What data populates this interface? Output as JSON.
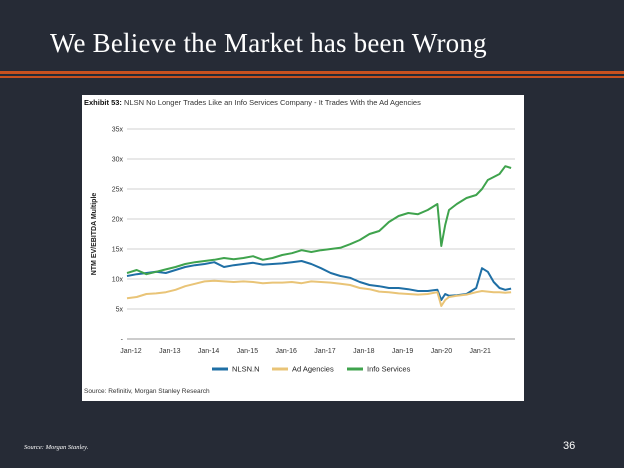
{
  "slide": {
    "title": "We Believe the Market has been Wrong",
    "footer_source": "Source: Morgan Stanley.",
    "page_number": "36",
    "accent_color": "#c9511f",
    "background_color": "#262b36"
  },
  "exhibit": {
    "label": "Exhibit 53:",
    "caption": "NLSN No Longer Trades Like an Info Services Company - It Trades With the Ad Agencies",
    "source": "Source: Refinitiv, Morgan Stanley Research"
  },
  "chart_data": {
    "type": "line",
    "ylabel": "NTM EV/EBITDA Multiple",
    "xlabel": "",
    "ylim": [
      0,
      35
    ],
    "xlim": [
      2012.0,
      2022.0
    ],
    "y_ticks": [
      0,
      5,
      10,
      15,
      20,
      25,
      30,
      35
    ],
    "y_tick_labels": [
      "-",
      "5x",
      "10x",
      "15x",
      "20x",
      "25x",
      "30x",
      "35x"
    ],
    "x_ticks": [
      2012,
      2013,
      2014,
      2015,
      2016,
      2017,
      2018,
      2019,
      2020,
      2021
    ],
    "x_tick_labels": [
      "Jan-12",
      "Jan-13",
      "Jan-14",
      "Jan-15",
      "Jan-16",
      "Jan-17",
      "Jan-18",
      "Jan-19",
      "Jan-20",
      "Jan-21"
    ],
    "grid": true,
    "legend_position": "bottom",
    "series": [
      {
        "name": "NLSN.N",
        "color": "#1f6fa5",
        "x": [
          2012.0,
          2012.25,
          2012.5,
          2012.75,
          2013.0,
          2013.25,
          2013.5,
          2013.75,
          2014.0,
          2014.25,
          2014.5,
          2014.75,
          2015.0,
          2015.25,
          2015.5,
          2015.75,
          2016.0,
          2016.25,
          2016.5,
          2016.75,
          2017.0,
          2017.25,
          2017.5,
          2017.75,
          2018.0,
          2018.25,
          2018.5,
          2018.75,
          2019.0,
          2019.25,
          2019.5,
          2019.75,
          2020.0,
          2020.1,
          2020.2,
          2020.3,
          2020.5,
          2020.75,
          2021.0,
          2021.15,
          2021.3,
          2021.45,
          2021.6,
          2021.75,
          2021.9
        ],
        "y": [
          10.5,
          10.8,
          11.0,
          11.2,
          11.0,
          11.5,
          12.0,
          12.3,
          12.5,
          12.8,
          12.0,
          12.3,
          12.5,
          12.7,
          12.4,
          12.5,
          12.6,
          12.8,
          13.0,
          12.5,
          11.8,
          11.0,
          10.5,
          10.2,
          9.5,
          9.0,
          8.8,
          8.5,
          8.5,
          8.3,
          8.0,
          8.0,
          8.2,
          6.5,
          7.5,
          7.2,
          7.3,
          7.5,
          8.5,
          11.8,
          11.2,
          9.5,
          8.5,
          8.2,
          8.4
        ]
      },
      {
        "name": "Ad Agencies",
        "color": "#e9c477",
        "x": [
          2012.0,
          2012.25,
          2012.5,
          2012.75,
          2013.0,
          2013.25,
          2013.5,
          2013.75,
          2014.0,
          2014.25,
          2014.5,
          2014.75,
          2015.0,
          2015.25,
          2015.5,
          2015.75,
          2016.0,
          2016.25,
          2016.5,
          2016.75,
          2017.0,
          2017.25,
          2017.5,
          2017.75,
          2018.0,
          2018.25,
          2018.5,
          2018.75,
          2019.0,
          2019.25,
          2019.5,
          2019.75,
          2020.0,
          2020.1,
          2020.2,
          2020.3,
          2020.5,
          2020.75,
          2021.0,
          2021.15,
          2021.3,
          2021.45,
          2021.6,
          2021.75,
          2021.9
        ],
        "y": [
          6.8,
          7.0,
          7.5,
          7.6,
          7.8,
          8.2,
          8.8,
          9.2,
          9.6,
          9.7,
          9.6,
          9.5,
          9.6,
          9.5,
          9.3,
          9.4,
          9.4,
          9.5,
          9.3,
          9.6,
          9.5,
          9.4,
          9.2,
          9.0,
          8.5,
          8.3,
          7.9,
          7.8,
          7.6,
          7.5,
          7.4,
          7.5,
          7.8,
          5.5,
          6.5,
          7.0,
          7.2,
          7.4,
          7.8,
          8.0,
          7.9,
          7.8,
          7.8,
          7.7,
          7.8
        ]
      },
      {
        "name": "Info Services",
        "color": "#3fa34d",
        "x": [
          2012.0,
          2012.25,
          2012.5,
          2012.75,
          2013.0,
          2013.25,
          2013.5,
          2013.75,
          2014.0,
          2014.25,
          2014.5,
          2014.75,
          2015.0,
          2015.25,
          2015.5,
          2015.75,
          2016.0,
          2016.25,
          2016.5,
          2016.75,
          2017.0,
          2017.25,
          2017.5,
          2017.75,
          2018.0,
          2018.25,
          2018.5,
          2018.75,
          2019.0,
          2019.25,
          2019.5,
          2019.75,
          2020.0,
          2020.1,
          2020.2,
          2020.3,
          2020.5,
          2020.75,
          2021.0,
          2021.15,
          2021.3,
          2021.45,
          2021.6,
          2021.75,
          2021.9
        ],
        "y": [
          11.0,
          11.5,
          10.8,
          11.2,
          11.6,
          12.0,
          12.5,
          12.8,
          13.0,
          13.2,
          13.5,
          13.3,
          13.5,
          13.8,
          13.2,
          13.5,
          14.0,
          14.3,
          14.8,
          14.5,
          14.8,
          15.0,
          15.2,
          15.8,
          16.5,
          17.5,
          18.0,
          19.5,
          20.5,
          21.0,
          20.8,
          21.5,
          22.5,
          15.5,
          19.0,
          21.5,
          22.5,
          23.5,
          24.0,
          25.0,
          26.5,
          27.0,
          27.5,
          28.8,
          28.5
        ]
      }
    ]
  }
}
